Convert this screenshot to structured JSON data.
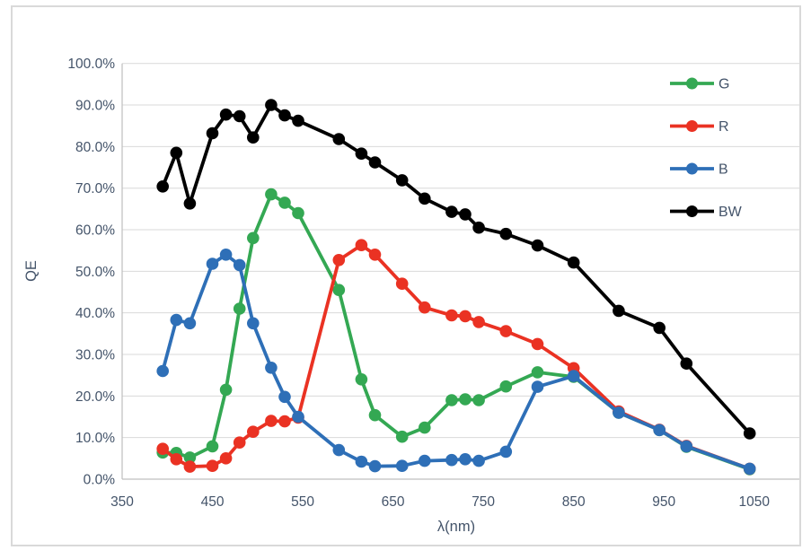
{
  "figure": {
    "background": "#FFFFFF",
    "border_color": "#D9D9D9"
  },
  "chart_data": {
    "type": "line",
    "title": "",
    "xlabel": "λ(nm)",
    "ylabel": "QE",
    "grid": "horizontal",
    "legend_position": "top-right-inside",
    "axis_text_color": "#44546A",
    "gridline_color": "#D9D9D9",
    "axis_line_color": "#BFBFBF",
    "x_axis": {
      "min": 350,
      "max": 1100,
      "tick_interval": 100,
      "tick_labels": [
        "350",
        "450",
        "550",
        "650",
        "750",
        "850",
        "950",
        "1050"
      ]
    },
    "y_axis": {
      "min": 0,
      "max": 100,
      "tick_interval": 10,
      "tick_labels": [
        "0.0%",
        "10.0%",
        "20.0%",
        "30.0%",
        "40.0%",
        "50.0%",
        "60.0%",
        "70.0%",
        "80.0%",
        "90.0%",
        "100.0%"
      ]
    },
    "x": [
      395,
      410,
      425,
      450,
      465,
      480,
      495,
      515,
      530,
      545,
      590,
      615,
      630,
      660,
      685,
      715,
      730,
      745,
      775,
      810,
      850,
      900,
      945,
      975,
      1045
    ],
    "series": [
      {
        "name": "G",
        "color": "#34A853",
        "values": [
          6.4,
          6.3,
          5.2,
          7.9,
          21.5,
          41.0,
          58.0,
          68.5,
          66.5,
          64.0,
          45.5,
          24.0,
          15.4,
          10.2,
          12.4,
          19.0,
          19.2,
          19.0,
          22.3,
          25.7,
          24.6,
          16.0,
          11.8,
          7.8,
          2.4
        ]
      },
      {
        "name": "R",
        "color": "#EA3223",
        "values": [
          7.3,
          4.8,
          3.0,
          3.2,
          5.0,
          8.8,
          11.4,
          14.0,
          13.9,
          14.8,
          52.7,
          56.3,
          54.0,
          47.0,
          41.3,
          39.4,
          39.2,
          37.8,
          35.6,
          32.5,
          26.7,
          16.3,
          11.9,
          8.0,
          2.5
        ]
      },
      {
        "name": "B",
        "color": "#2E6FB7",
        "values": [
          26.0,
          38.3,
          37.5,
          51.8,
          54.0,
          51.5,
          37.5,
          26.8,
          19.8,
          15.0,
          7.0,
          4.2,
          3.1,
          3.2,
          4.4,
          4.6,
          4.8,
          4.4,
          6.6,
          22.2,
          24.8,
          16.0,
          11.8,
          7.9,
          2.5
        ]
      },
      {
        "name": "BW",
        "color": "#000000",
        "values": [
          70.4,
          78.5,
          66.3,
          83.2,
          87.7,
          87.3,
          82.2,
          90.0,
          87.5,
          86.2,
          81.8,
          78.3,
          76.2,
          71.9,
          67.5,
          64.3,
          63.7,
          60.5,
          59.0,
          56.2,
          52.1,
          40.5,
          36.4,
          27.8,
          11.0
        ]
      }
    ]
  }
}
